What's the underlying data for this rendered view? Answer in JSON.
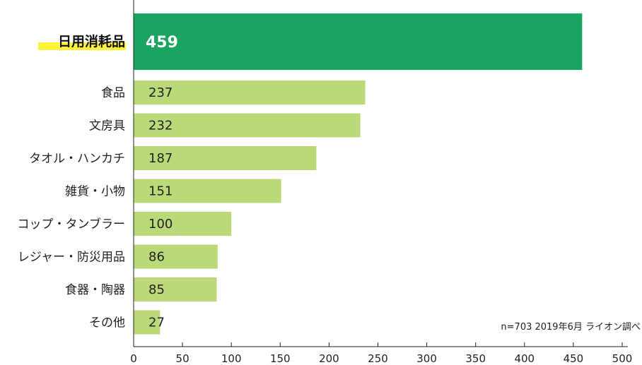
{
  "chart_data": {
    "type": "bar",
    "orientation": "horizontal",
    "categories": [
      "日用消耗品",
      "食品",
      "文房具",
      "タオル・ハンカチ",
      "雑貨・小物",
      "コップ・タンブラー",
      "レジャー・防災用品",
      "食器・陶器",
      "その他"
    ],
    "values": [
      459,
      237,
      232,
      187,
      151,
      100,
      86,
      85,
      27
    ],
    "highlight_index": 0,
    "xlim": [
      0,
      500
    ],
    "xticks": [
      0,
      50,
      100,
      150,
      200,
      250,
      300,
      350,
      400,
      450,
      500
    ],
    "title": "",
    "xlabel": "",
    "ylabel": "",
    "grid": false,
    "note": "n=703 2019年6月 ライオン調べ",
    "colors": {
      "highlight_bar": "#1ba362",
      "bar": "#bcd97a",
      "highlight_label_marker": "#fff23a",
      "axis": "#222222"
    }
  }
}
